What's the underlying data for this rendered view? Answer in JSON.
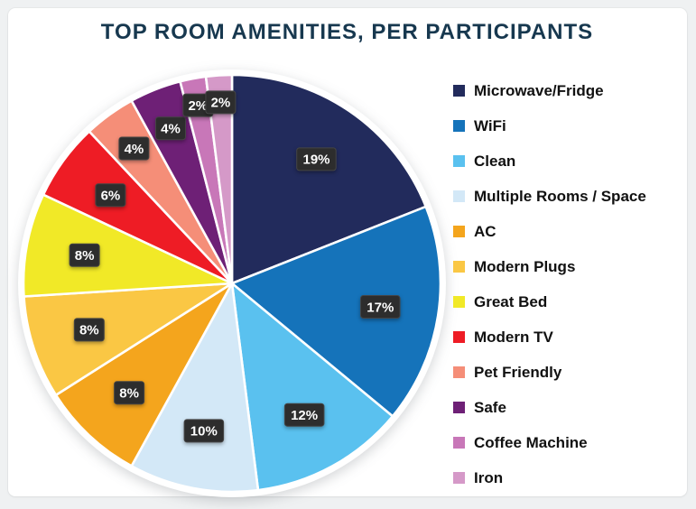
{
  "page": {
    "background_color": "#eff1f2",
    "card_background": "#ffffff"
  },
  "chart_data": {
    "type": "pie",
    "title": "TOP ROOM AMENITIES, PER PARTICIPANTS",
    "title_color": "#17384f",
    "start_angle": "top",
    "direction": "clockwise",
    "legend_position": "right",
    "value_label_bg": "#2d2d2d",
    "value_label_border": "#454545",
    "value_label_text_color": "#ffffff",
    "slices": [
      {
        "label": "Microwave/Fridge",
        "value": 19,
        "percent_label": "19%",
        "color": "#222b5c"
      },
      {
        "label": "WiFi",
        "value": 17,
        "percent_label": "17%",
        "color": "#1573ba"
      },
      {
        "label": "Clean",
        "value": 12,
        "percent_label": "12%",
        "color": "#5ac1ef"
      },
      {
        "label": "Multiple Rooms / Space",
        "value": 10,
        "percent_label": "10%",
        "color": "#d3e8f7"
      },
      {
        "label": "AC",
        "value": 8,
        "percent_label": "8%",
        "color": "#f4a51d"
      },
      {
        "label": "Modern Plugs",
        "value": 8,
        "percent_label": "8%",
        "color": "#fac744"
      },
      {
        "label": "Great Bed",
        "value": 8,
        "percent_label": "8%",
        "color": "#f1e927"
      },
      {
        "label": "Modern TV",
        "value": 6,
        "percent_label": "6%",
        "color": "#ee1c25"
      },
      {
        "label": "Pet Friendly",
        "value": 4,
        "percent_label": "4%",
        "color": "#f58e78"
      },
      {
        "label": "Safe",
        "value": 4,
        "percent_label": "4%",
        "color": "#6e2076"
      },
      {
        "label": "Coffee Machine",
        "value": 2,
        "percent_label": "2%",
        "color": "#c877b8"
      },
      {
        "label": "Iron",
        "value": 2,
        "percent_label": "2%",
        "color": "#d599c8"
      }
    ]
  }
}
